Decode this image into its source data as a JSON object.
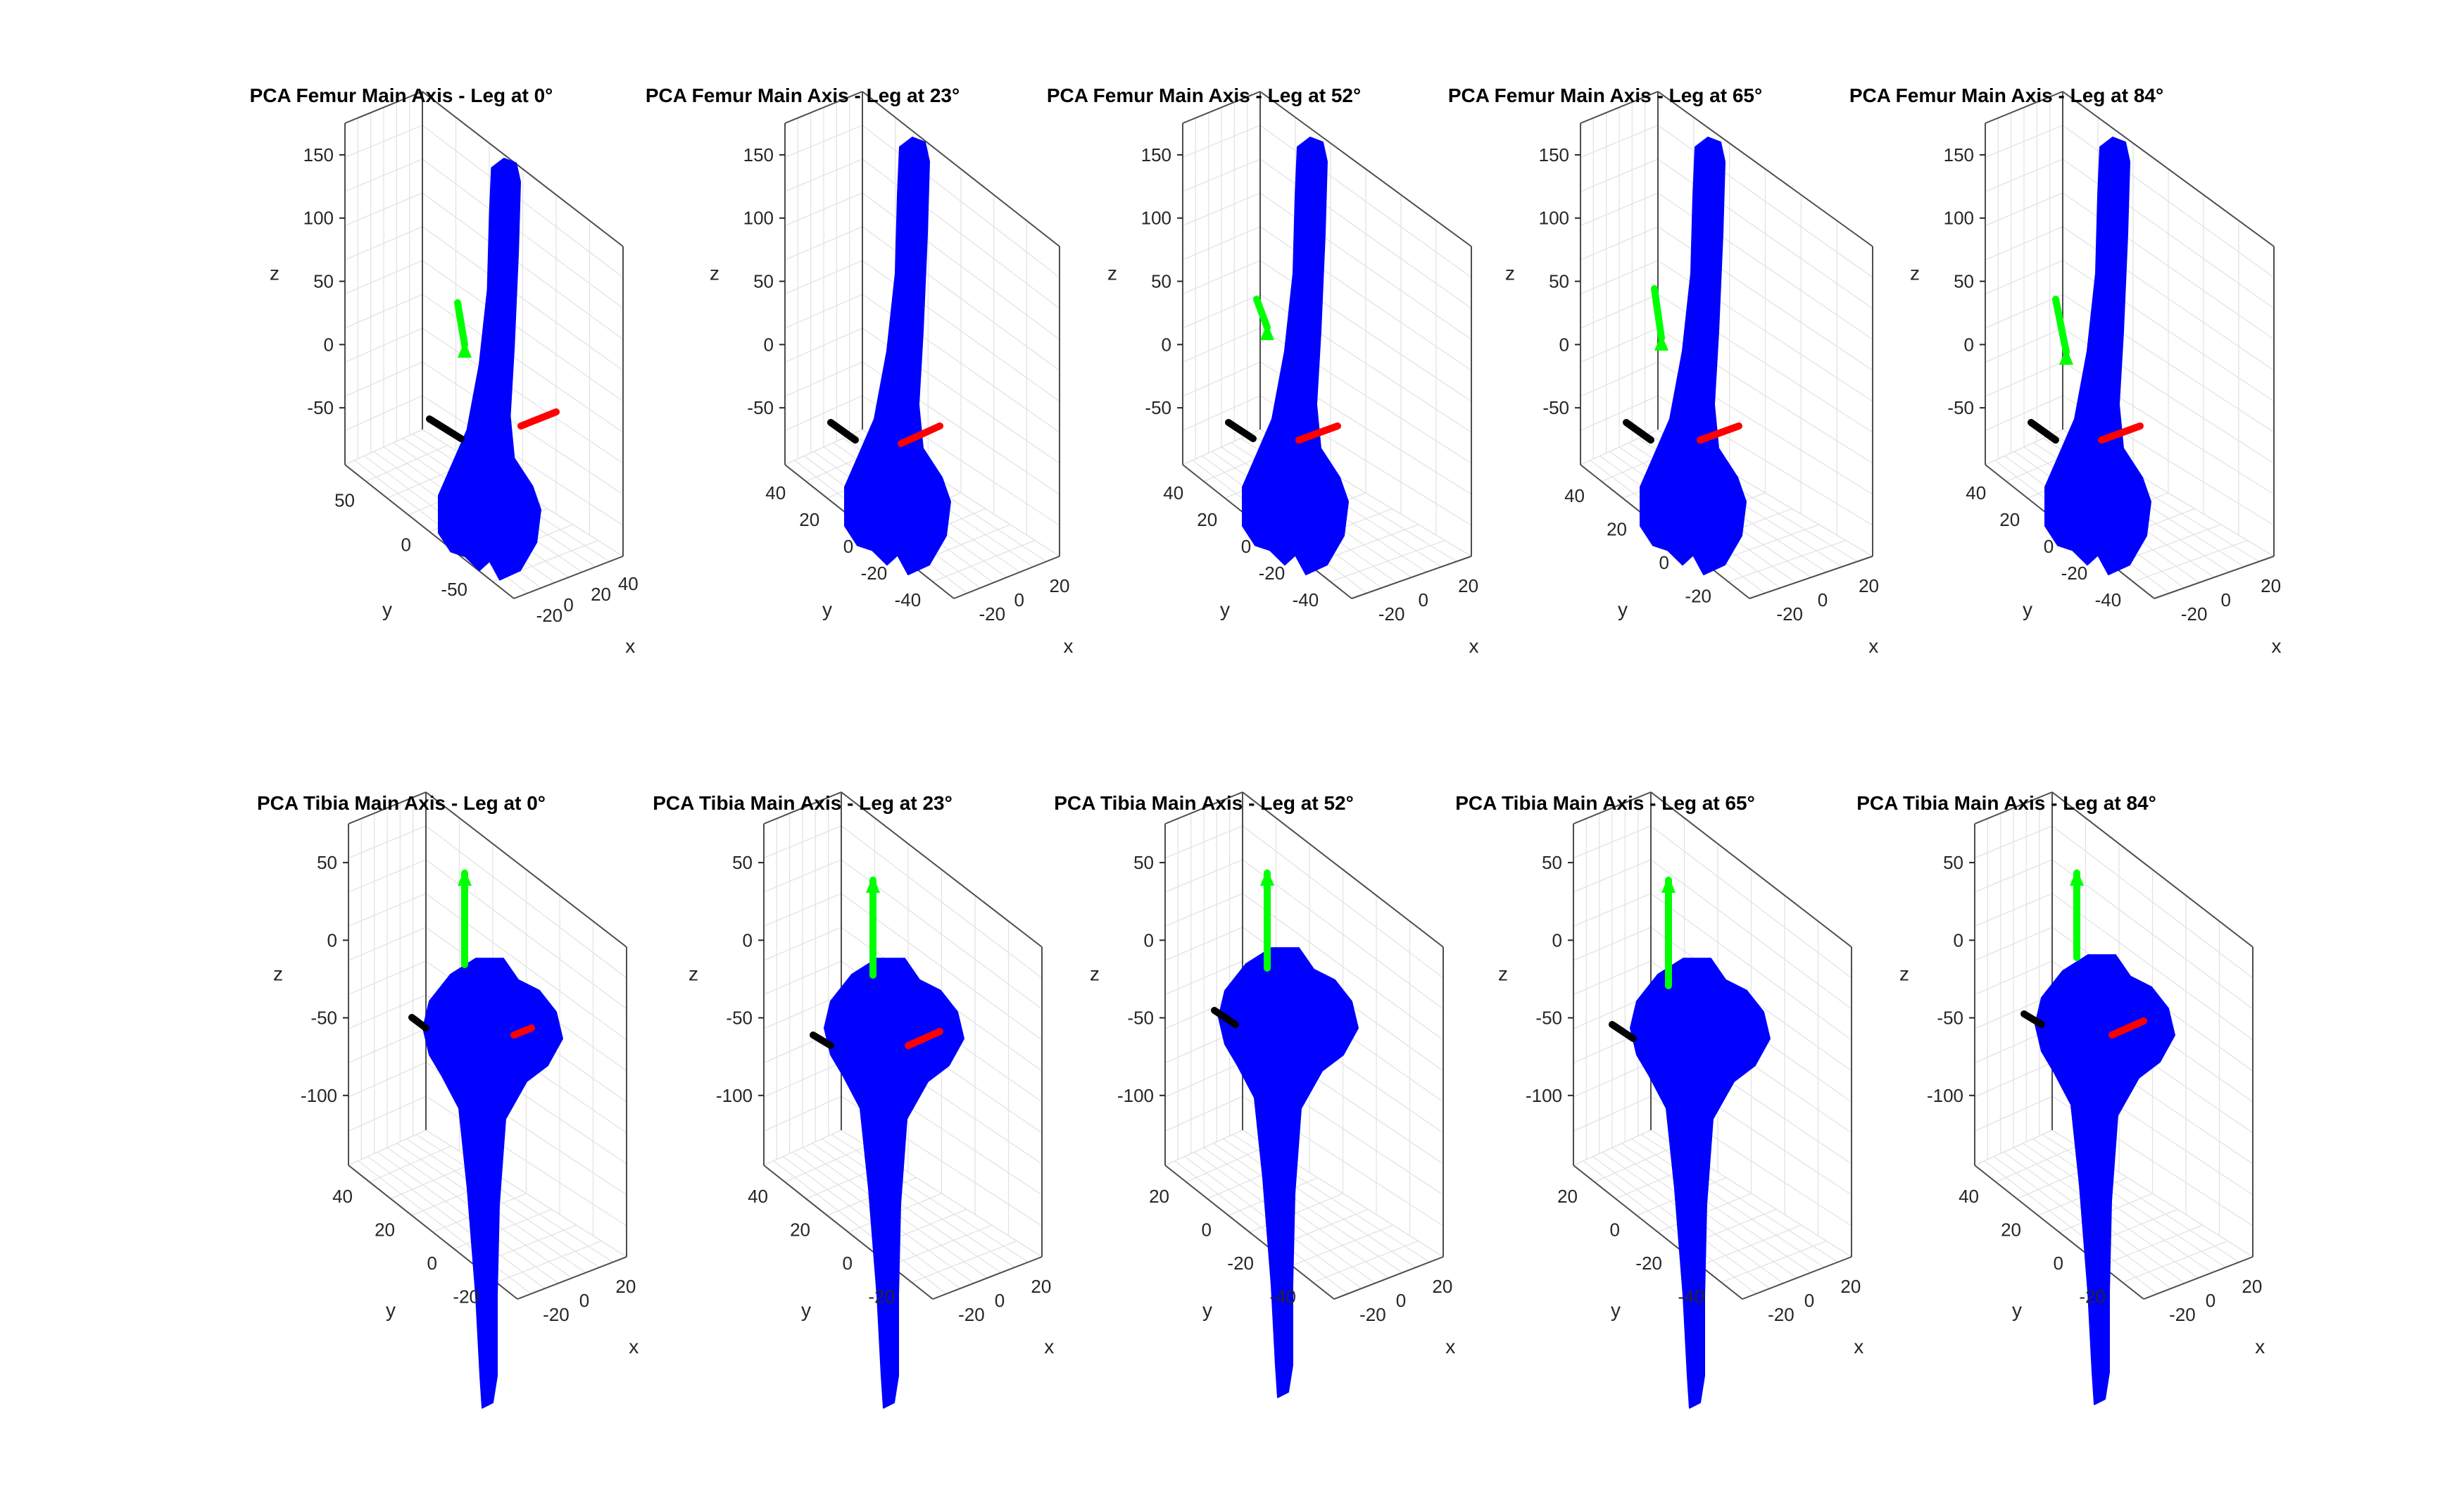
{
  "chart_data": [
    {
      "type": "surface3d",
      "title": "PCA Femur Main Axis - Leg at 0°",
      "bone": "femur",
      "angle": 0,
      "xlabel": "x",
      "ylabel": "y",
      "zlabel": "z",
      "xticks": [
        "-20",
        "0",
        "20",
        "40"
      ],
      "yticks": [
        "50",
        "0",
        "-50"
      ],
      "zticks": [
        "150",
        "100",
        "50",
        "0",
        "-50"
      ],
      "grid": true,
      "axes_lines": [
        {
          "name": "black-axis",
          "color": "#000000"
        },
        {
          "name": "red-axis",
          "color": "#ff0000"
        },
        {
          "name": "green-axis",
          "color": "#00ff00"
        }
      ]
    },
    {
      "type": "surface3d",
      "title": "PCA Femur Main Axis - Leg at 23°",
      "bone": "femur",
      "angle": 23,
      "xlabel": "x",
      "ylabel": "y",
      "zlabel": "z",
      "xticks": [
        "-20",
        "0",
        "20"
      ],
      "yticks": [
        "40",
        "20",
        "0",
        "-20",
        "-40"
      ],
      "zticks": [
        "150",
        "100",
        "50",
        "0",
        "-50"
      ],
      "grid": true,
      "axes_lines": [
        {
          "name": "black-axis",
          "color": "#000000"
        },
        {
          "name": "red-axis",
          "color": "#ff0000"
        },
        {
          "name": "green-axis",
          "color": "#00ff00"
        }
      ]
    },
    {
      "type": "surface3d",
      "title": "PCA Femur Main Axis - Leg at 52°",
      "bone": "femur",
      "angle": 52,
      "xlabel": "x",
      "ylabel": "y",
      "zlabel": "z",
      "xticks": [
        "-20",
        "0",
        "20"
      ],
      "yticks": [
        "40",
        "20",
        "0",
        "-20",
        "-40"
      ],
      "zticks": [
        "150",
        "100",
        "50",
        "0",
        "-50"
      ],
      "grid": true,
      "axes_lines": [
        {
          "name": "black-axis",
          "color": "#000000"
        },
        {
          "name": "red-axis",
          "color": "#ff0000"
        },
        {
          "name": "green-axis",
          "color": "#00ff00"
        }
      ]
    },
    {
      "type": "surface3d",
      "title": "PCA Femur Main Axis - Leg at 65°",
      "bone": "femur",
      "angle": 65,
      "xlabel": "x",
      "ylabel": "y",
      "zlabel": "z",
      "xticks": [
        "-20",
        "0",
        "20"
      ],
      "yticks": [
        "40",
        "20",
        "0",
        "-20"
      ],
      "zticks": [
        "150",
        "100",
        "50",
        "0",
        "-50"
      ],
      "grid": true,
      "axes_lines": [
        {
          "name": "black-axis",
          "color": "#000000"
        },
        {
          "name": "red-axis",
          "color": "#ff0000"
        },
        {
          "name": "green-axis",
          "color": "#00ff00"
        }
      ]
    },
    {
      "type": "surface3d",
      "title": "PCA Femur Main Axis - Leg at 84°",
      "bone": "femur",
      "angle": 84,
      "xlabel": "x",
      "ylabel": "y",
      "zlabel": "z",
      "xticks": [
        "-20",
        "0",
        "20"
      ],
      "yticks": [
        "40",
        "20",
        "0",
        "-20",
        "-40"
      ],
      "zticks": [
        "150",
        "100",
        "50",
        "0",
        "-50"
      ],
      "grid": true,
      "axes_lines": [
        {
          "name": "black-axis",
          "color": "#000000"
        },
        {
          "name": "red-axis",
          "color": "#ff0000"
        },
        {
          "name": "green-axis",
          "color": "#00ff00"
        }
      ]
    },
    {
      "type": "surface3d",
      "title": "PCA Tibia Main Axis - Leg at 0°",
      "bone": "tibia",
      "angle": 0,
      "xlabel": "x",
      "ylabel": "y",
      "zlabel": "z",
      "xticks": [
        "-20",
        "0",
        "20"
      ],
      "yticks": [
        "40",
        "20",
        "0",
        "-20"
      ],
      "zticks": [
        "50",
        "0",
        "-50",
        "-100"
      ],
      "grid": true,
      "axes_lines": [
        {
          "name": "black-axis",
          "color": "#000000"
        },
        {
          "name": "red-axis",
          "color": "#ff0000"
        },
        {
          "name": "green-axis",
          "color": "#00ff00"
        }
      ]
    },
    {
      "type": "surface3d",
      "title": "PCA Tibia Main Axis - Leg at 23°",
      "bone": "tibia",
      "angle": 23,
      "xlabel": "x",
      "ylabel": "y",
      "zlabel": "z",
      "xticks": [
        "-20",
        "0",
        "20"
      ],
      "yticks": [
        "40",
        "20",
        "0",
        "-20"
      ],
      "zticks": [
        "50",
        "0",
        "-50",
        "-100"
      ],
      "grid": true,
      "axes_lines": [
        {
          "name": "black-axis",
          "color": "#000000"
        },
        {
          "name": "red-axis",
          "color": "#ff0000"
        },
        {
          "name": "green-axis",
          "color": "#00ff00"
        }
      ]
    },
    {
      "type": "surface3d",
      "title": "PCA Tibia Main Axis - Leg at 52°",
      "bone": "tibia",
      "angle": 52,
      "xlabel": "x",
      "ylabel": "y",
      "zlabel": "z",
      "xticks": [
        "-20",
        "0",
        "20"
      ],
      "yticks": [
        "20",
        "0",
        "-20",
        "-40"
      ],
      "zticks": [
        "50",
        "0",
        "-50",
        "-100"
      ],
      "grid": true,
      "axes_lines": [
        {
          "name": "black-axis",
          "color": "#000000"
        },
        {
          "name": "red-axis",
          "color": "#ff0000"
        },
        {
          "name": "green-axis",
          "color": "#00ff00"
        }
      ]
    },
    {
      "type": "surface3d",
      "title": "PCA Tibia Main Axis - Leg at 65°",
      "bone": "tibia",
      "angle": 65,
      "xlabel": "x",
      "ylabel": "y",
      "zlabel": "z",
      "xticks": [
        "-20",
        "0",
        "20"
      ],
      "yticks": [
        "20",
        "0",
        "-20",
        "-40"
      ],
      "zticks": [
        "50",
        "0",
        "-50",
        "-100"
      ],
      "grid": true,
      "axes_lines": [
        {
          "name": "black-axis",
          "color": "#000000"
        },
        {
          "name": "red-axis",
          "color": "#ff0000"
        },
        {
          "name": "green-axis",
          "color": "#00ff00"
        }
      ]
    },
    {
      "type": "surface3d",
      "title": "PCA Tibia Main Axis - Leg at 84°",
      "bone": "tibia",
      "angle": 84,
      "xlabel": "x",
      "ylabel": "y",
      "zlabel": "z",
      "xticks": [
        "-20",
        "0",
        "20"
      ],
      "yticks": [
        "40",
        "20",
        "0",
        "-20"
      ],
      "zticks": [
        "50",
        "0",
        "-50",
        "-100"
      ],
      "grid": true,
      "axes_lines": [
        {
          "name": "black-axis",
          "color": "#000000"
        },
        {
          "name": "red-axis",
          "color": "#ff0000"
        },
        {
          "name": "green-axis",
          "color": "#00ff00"
        }
      ]
    }
  ],
  "colors": {
    "bone": "#0000ff",
    "axis_black": "#000000",
    "axis_red": "#ff0000",
    "axis_green": "#00ff00"
  }
}
